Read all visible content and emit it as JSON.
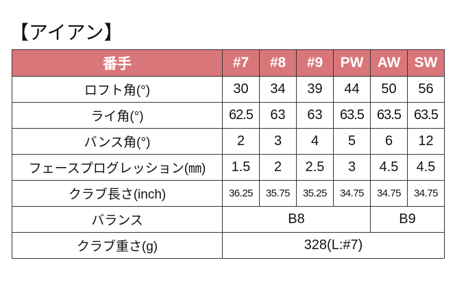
{
  "title": "【アイアン】",
  "colors": {
    "header_bg": "#d9767a",
    "header_text": "#ffffff"
  },
  "header": {
    "label": "番手",
    "columns": [
      "#7",
      "#8",
      "#9",
      "PW",
      "AW",
      "SW"
    ]
  },
  "rows": [
    {
      "label": "ロフト角(°)",
      "values": [
        "30",
        "34",
        "39",
        "44",
        "50",
        "56"
      ]
    },
    {
      "label": "ライ角(°)",
      "values": [
        "62.5",
        "63",
        "63",
        "63.5",
        "63.5",
        "63.5"
      ]
    },
    {
      "label": "バンス角(°)",
      "values": [
        "2",
        "3",
        "4",
        "5",
        "6",
        "12"
      ]
    },
    {
      "label": "フェースプログレッション(㎜)",
      "values": [
        "1.5",
        "2",
        "2.5",
        "3",
        "4.5",
        "4.5"
      ]
    },
    {
      "label": "クラブ長さ(inch)",
      "values": [
        "36.25",
        "35.75",
        "35.25",
        "34.75",
        "34.75",
        "34.75"
      ]
    }
  ],
  "balance": {
    "label": "バランス",
    "b8": "B8",
    "b9": "B9"
  },
  "weight": {
    "label": "クラブ重さ(g)",
    "value": "328(L:#7)"
  }
}
